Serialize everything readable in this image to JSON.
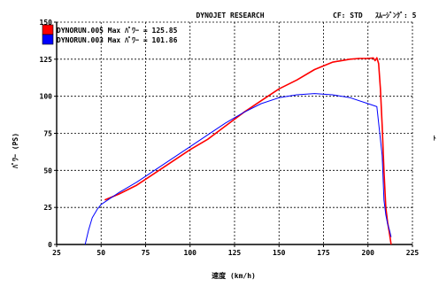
{
  "header": {
    "title": "DYNOJET  RESEARCH",
    "cf_label": "CF: STD",
    "smoothing_label": "ｽﾑｰｼﾞﾝｸﾞ: 5"
  },
  "legend": [
    {
      "name": "DYNORUN.005",
      "text": "DYNORUN.005 Max ﾊﾟﾜｰ = 125.85",
      "color": "#ff0000"
    },
    {
      "name": "DYNORUN.003",
      "text": "DYNORUN.003 Max ﾊﾟﾜｰ = 101.86",
      "color": "#0000ff"
    }
  ],
  "right_edge_mark": "ﾄ",
  "chart_data": {
    "type": "line",
    "xlabel": "速度 (km/h)",
    "ylabel": "ﾊﾟﾜｰ (PS)",
    "xlim": [
      25,
      225
    ],
    "ylim": [
      0,
      150
    ],
    "x_ticks": [
      25,
      50,
      75,
      100,
      125,
      150,
      175,
      200,
      225
    ],
    "y_ticks": [
      0,
      25,
      50,
      75,
      100,
      125,
      150
    ],
    "x_tick_labels": [
      "25",
      "50",
      "75",
      "100",
      "125",
      "150",
      "175",
      "200",
      "225"
    ],
    "y_tick_labels": [
      "0",
      "25",
      "50",
      "75",
      "100",
      "125",
      "150"
    ],
    "grid": true,
    "legend_position": "top-left",
    "series": [
      {
        "name": "DYNORUN.005",
        "color": "#ff0000",
        "x": [
          52,
          60,
          70,
          80,
          90,
          100,
          110,
          120,
          130,
          140,
          150,
          160,
          170,
          180,
          190,
          195,
          200,
          203,
          204,
          205,
          206,
          207,
          208,
          209,
          210,
          211,
          212,
          213
        ],
        "y": [
          30,
          34,
          40,
          48,
          56,
          64,
          71,
          80,
          89,
          97,
          105,
          111,
          118,
          123,
          125,
          125.5,
          125.5,
          125.85,
          124,
          126,
          122,
          105,
          80,
          50,
          25,
          15,
          8,
          0
        ]
      },
      {
        "name": "DYNORUN.003",
        "color": "#0000ff",
        "x": [
          41,
          43,
          45,
          48,
          50,
          55,
          60,
          70,
          80,
          90,
          100,
          110,
          120,
          130,
          140,
          150,
          160,
          170,
          180,
          190,
          200,
          205,
          208,
          209,
          210,
          211,
          212,
          213
        ],
        "y": [
          0,
          10,
          18,
          24,
          27,
          31,
          35,
          42,
          50,
          58,
          66,
          74,
          82,
          89,
          95,
          99,
          101,
          101.86,
          101,
          99,
          95,
          93,
          60,
          30,
          20,
          14,
          10,
          5
        ]
      }
    ]
  }
}
